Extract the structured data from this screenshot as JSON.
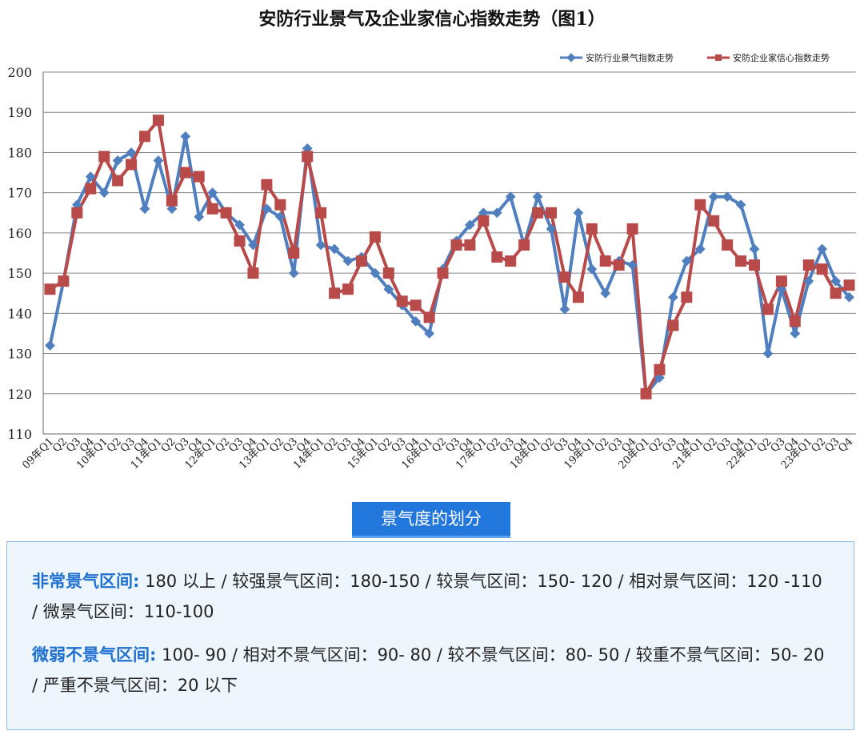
{
  "chart_data": {
    "type": "line",
    "title": "安防行业景气及企业家信心指数走势（图1）",
    "ylim": [
      110,
      200
    ],
    "yticks": [
      110,
      120,
      130,
      140,
      150,
      160,
      170,
      180,
      190,
      200
    ],
    "grid": true,
    "legend_position": "top-right",
    "x": [
      "09年Q1",
      "Q2",
      "Q3",
      "Q4",
      "10年Q1",
      "Q2",
      "Q3",
      "Q4",
      "11年Q1",
      "Q2",
      "Q3",
      "Q4",
      "12年Q1",
      "Q2",
      "Q3",
      "Q4",
      "13年Q1",
      "Q2",
      "Q3",
      "Q4",
      "14年Q1",
      "Q2",
      "Q3",
      "Q4",
      "15年Q1",
      "Q2",
      "Q3",
      "Q4",
      "16年Q1",
      "Q2",
      "Q3",
      "Q4",
      "17年Q1",
      "Q2",
      "Q3",
      "Q4",
      "18年Q1",
      "Q2",
      "Q3",
      "Q4",
      "19年Q1",
      "Q2",
      "Q3",
      "Q4",
      "20年Q1",
      "Q2",
      "Q3",
      "Q4",
      "21年Q1",
      "Q2",
      "Q3",
      "Q4",
      "22年Q1",
      "Q2",
      "Q3",
      "Q4",
      "23年Q1",
      "Q2",
      "Q3",
      "Q4"
    ],
    "series": [
      {
        "name": "安防行业景气指数走势",
        "color": "#4f7fbf",
        "marker": "diamond",
        "values": [
          132,
          148,
          167,
          174,
          170,
          178,
          180,
          166,
          178,
          166,
          184,
          164,
          170,
          165,
          162,
          157,
          166,
          164,
          150,
          181,
          157,
          156,
          153,
          154,
          150,
          146,
          142,
          138,
          135,
          151,
          158,
          162,
          165,
          165,
          169,
          157,
          169,
          161,
          141,
          165,
          151,
          145,
          153,
          152,
          120,
          124,
          144,
          153,
          156,
          169,
          169,
          167,
          156,
          130,
          146,
          135,
          148,
          156,
          148,
          144
        ]
      },
      {
        "name": "安防企业家信心指数走势",
        "color": "#b84a4a",
        "marker": "square",
        "values": [
          146,
          148,
          165,
          171,
          179,
          173,
          177,
          184,
          188,
          168,
          175,
          174,
          166,
          165,
          158,
          150,
          172,
          167,
          155,
          179,
          165,
          145,
          146,
          153,
          159,
          150,
          143,
          142,
          139,
          150,
          157,
          157,
          163,
          154,
          153,
          157,
          165,
          165,
          149,
          144,
          161,
          153,
          152,
          161,
          120,
          126,
          137,
          144,
          167,
          163,
          157,
          153,
          152,
          141,
          148,
          138,
          152,
          151,
          145,
          147
        ]
      }
    ]
  },
  "section_badge": "景气度的划分",
  "notes": [
    {
      "key": "非常景气区间:",
      "text": " 180 以上 / 较强景气区间：180-150 / 较景气区间：150- 120 / 相对景气区间：120 -110 / 微景气区间：110-100"
    },
    {
      "key": "微弱不景气区间:",
      "text": " 100- 90 / 相对不景气区间：90- 80 / 较不景气区间：80- 50 / 较重不景气区间：50- 20 / 严重不景气区间：20 以下"
    }
  ]
}
